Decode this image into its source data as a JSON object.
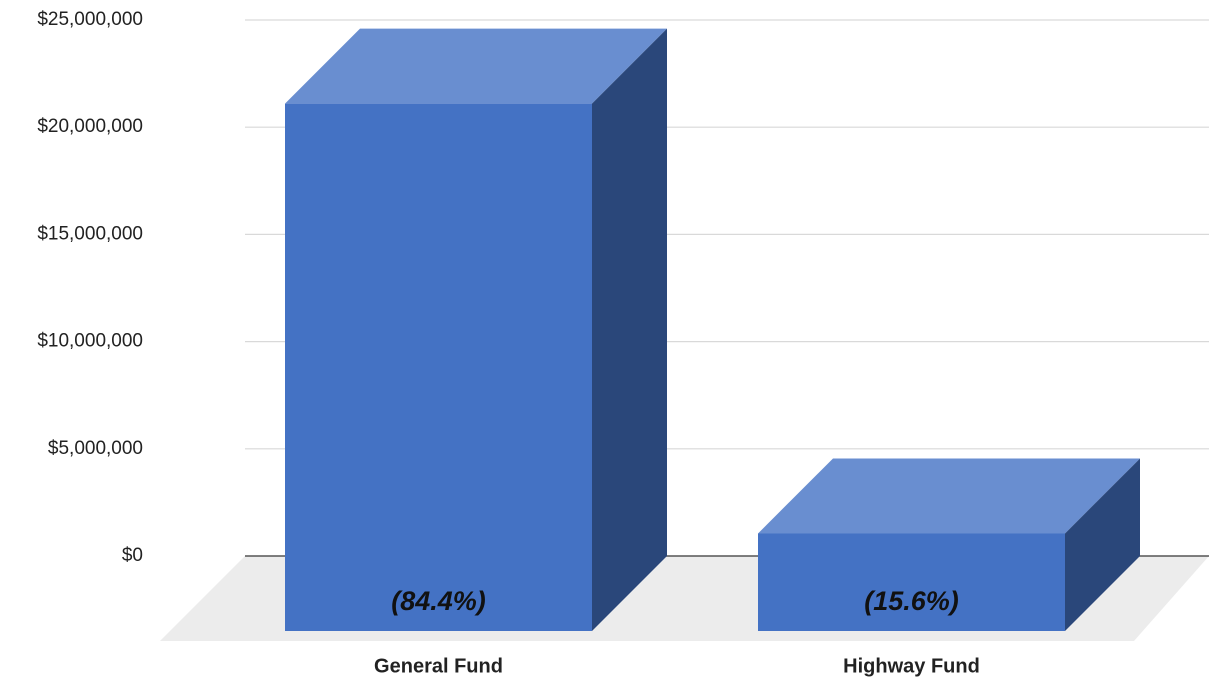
{
  "chart_data": {
    "type": "bar3d",
    "categories": [
      "General Fund",
      "Highway Fund"
    ],
    "values": [
      24600000,
      4550000
    ],
    "annotations": [
      "(84.4%)",
      "(15.6%)"
    ],
    "color": "#4472c4",
    "ylim": [
      0,
      25000000
    ],
    "yticks": [
      {
        "value": 0,
        "label": "$0"
      },
      {
        "value": 5000000,
        "label": "$5,000,000"
      },
      {
        "value": 10000000,
        "label": "$10,000,000"
      },
      {
        "value": 15000000,
        "label": "$15,000,000"
      },
      {
        "value": 20000000,
        "label": "$20,000,000"
      },
      {
        "value": 25000000,
        "label": "$25,000,000"
      }
    ],
    "grid": true
  }
}
